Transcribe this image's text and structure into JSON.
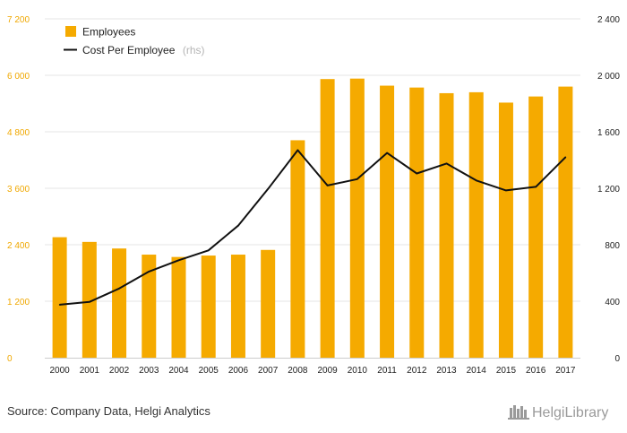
{
  "chart_data": {
    "type": "bar+line",
    "categories": [
      "2000",
      "2001",
      "2002",
      "2003",
      "2004",
      "2005",
      "2006",
      "2007",
      "2008",
      "2009",
      "2010",
      "2011",
      "2012",
      "2013",
      "2014",
      "2015",
      "2016",
      "2017"
    ],
    "series": [
      {
        "name": "Employees",
        "type": "bar",
        "axis": "left",
        "color": "#f5aa00",
        "values": [
          2560,
          2460,
          2320,
          2190,
          2140,
          2170,
          2190,
          2290,
          4620,
          5920,
          5930,
          5780,
          5740,
          5620,
          5640,
          5420,
          5550,
          5760
        ]
      },
      {
        "name": "Cost Per Employee",
        "type": "line",
        "axis": "right",
        "color": "#111111",
        "values": [
          375,
          395,
          490,
          610,
          690,
          760,
          935,
          1195,
          1470,
          1220,
          1265,
          1450,
          1305,
          1375,
          1255,
          1185,
          1210,
          1420
        ]
      }
    ],
    "legend": [
      {
        "label": "Employees",
        "note": ""
      },
      {
        "label": "Cost Per Employee",
        "note": "(rhs)"
      }
    ],
    "y_left": {
      "min": 0,
      "max": 7200,
      "ticks": [
        0,
        1200,
        2400,
        3600,
        4800,
        6000,
        7200
      ],
      "tick_labels": [
        "0",
        "1 200",
        "2 400",
        "3 600",
        "4 800",
        "6 000",
        "7 200"
      ]
    },
    "y_right": {
      "min": 0,
      "max": 2400,
      "ticks": [
        0,
        400,
        800,
        1200,
        1600,
        2000,
        2400
      ],
      "tick_labels": [
        "0",
        "400",
        "800",
        "1 200",
        "1 600",
        "2 000",
        "2 400"
      ]
    },
    "grid": true,
    "legend_position": "top-left"
  },
  "footer": {
    "source": "Source: Company Data, Helgi Analytics",
    "brand": "HelgiLibrary"
  },
  "colors": {
    "bar": "#f5aa00",
    "line": "#111111",
    "left_axis": "#f0a800",
    "grid": "#e6e6e6"
  }
}
